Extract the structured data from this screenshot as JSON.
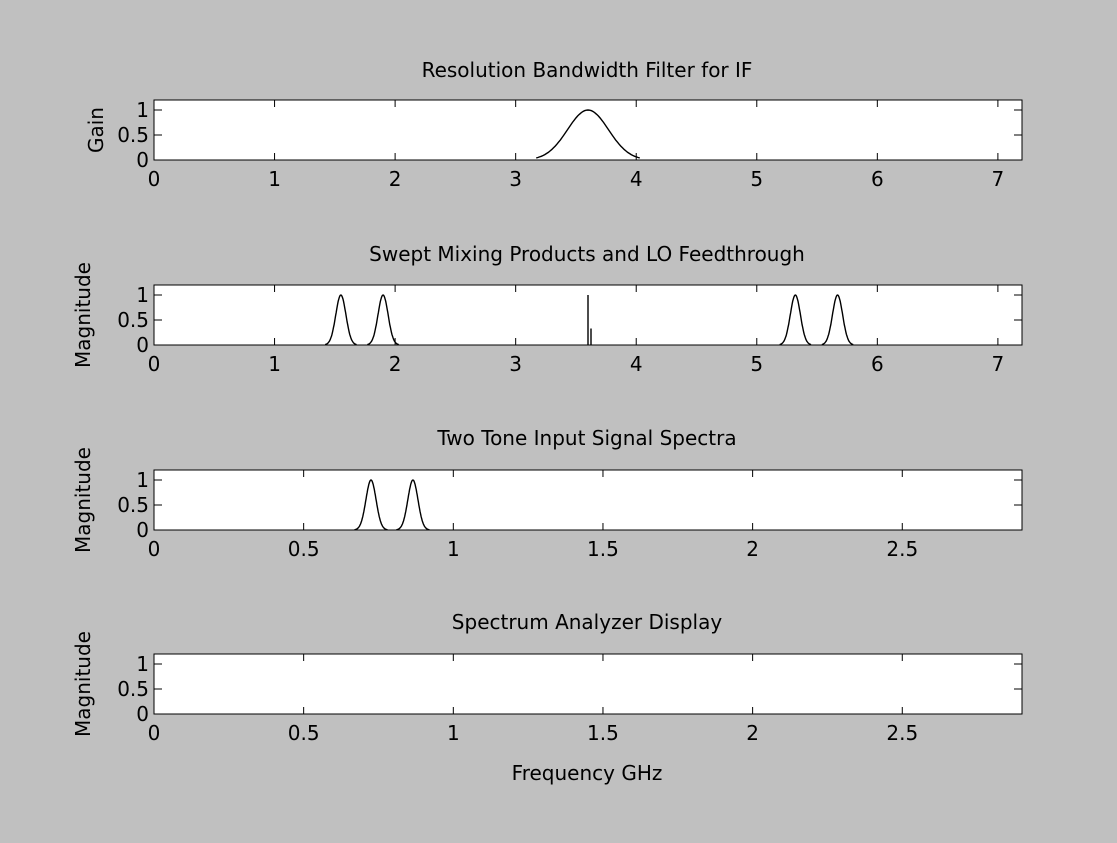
{
  "figure": {
    "background": "#c0c0c0",
    "axes_background": "#ffffff",
    "line_color": "#000000"
  },
  "chart_data": [
    {
      "type": "line",
      "title": "Resolution Bandwidth Filter for IF",
      "xlabel": "",
      "ylabel": "Gain",
      "xlim": [
        0,
        7.2
      ],
      "ylim": [
        0,
        1.2
      ],
      "xticks": [
        0,
        1,
        2,
        3,
        4,
        5,
        6,
        7
      ],
      "xtick_labels": [
        "0",
        "1",
        "2",
        "3",
        "4",
        "5",
        "6",
        "7"
      ],
      "yticks": [
        0,
        0.5,
        1
      ],
      "ytick_labels": [
        "0",
        "0.5",
        "1"
      ],
      "grid": false,
      "series": [
        {
          "shape": "gaussian_pulses",
          "pulses": [
            {
              "center": 3.6,
              "sigma": 0.17,
              "from": 3.17,
              "to": 4.03
            }
          ],
          "spikes": []
        }
      ]
    },
    {
      "type": "line",
      "title": "Swept Mixing Products and LO Feedthrough",
      "xlabel": "",
      "ylabel": "Magnitude",
      "xlim": [
        0,
        7.2
      ],
      "ylim": [
        0,
        1.2
      ],
      "xticks": [
        0,
        1,
        2,
        3,
        4,
        5,
        6,
        7
      ],
      "xtick_labels": [
        "0",
        "1",
        "2",
        "3",
        "4",
        "5",
        "6",
        "7"
      ],
      "yticks": [
        0,
        0.5,
        1
      ],
      "ytick_labels": [
        "0",
        "0.5",
        "1"
      ],
      "grid": false,
      "series": [
        {
          "shape": "gaussian_pulses",
          "pulses": [
            {
              "center": 1.55,
              "sigma": 0.042,
              "from": 1.42,
              "to": 1.68
            },
            {
              "center": 1.9,
              "sigma": 0.042,
              "from": 1.77,
              "to": 2.03
            },
            {
              "center": 5.32,
              "sigma": 0.042,
              "from": 5.19,
              "to": 5.45
            },
            {
              "center": 5.67,
              "sigma": 0.042,
              "from": 5.54,
              "to": 5.8
            }
          ],
          "spikes": [
            {
              "x": 3.6,
              "x2": 3.625,
              "y": 1.0
            }
          ]
        }
      ]
    },
    {
      "type": "line",
      "title": "Two Tone Input Signal Spectra",
      "xlabel": "",
      "ylabel": "Magnitude",
      "xlim": [
        0,
        2.9
      ],
      "ylim": [
        0,
        1.2
      ],
      "xticks": [
        0,
        0.5,
        1,
        1.5,
        2,
        2.5
      ],
      "xtick_labels": [
        "0",
        "0.5",
        "1",
        "1.5",
        "2",
        "2.5"
      ],
      "yticks": [
        0,
        0.5,
        1
      ],
      "ytick_labels": [
        "0",
        "0.5",
        "1"
      ],
      "grid": false,
      "series": [
        {
          "shape": "gaussian_pulses",
          "pulses": [
            {
              "center": 0.725,
              "sigma": 0.017,
              "from": 0.67,
              "to": 0.78
            },
            {
              "center": 0.865,
              "sigma": 0.017,
              "from": 0.81,
              "to": 0.92
            }
          ],
          "spikes": []
        }
      ]
    },
    {
      "type": "line",
      "title": "Spectrum Analyzer Display",
      "xlabel": "Frequency GHz",
      "ylabel": "Magnitude",
      "xlim": [
        0,
        2.9
      ],
      "ylim": [
        0,
        1.2
      ],
      "xticks": [
        0,
        0.5,
        1,
        1.5,
        2,
        2.5
      ],
      "xtick_labels": [
        "0",
        "0.5",
        "1",
        "1.5",
        "2",
        "2.5"
      ],
      "yticks": [
        0,
        0.5,
        1
      ],
      "ytick_labels": [
        "0",
        "0.5",
        "1"
      ],
      "grid": false,
      "series": []
    }
  ]
}
